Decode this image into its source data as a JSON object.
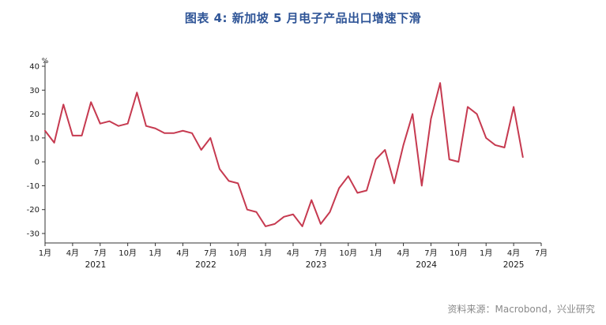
{
  "title": "图表 4: 新加坡 5 月电子产品出口增速下滑",
  "source": "资料来源：Macrobond，兴业研究",
  "colors": {
    "title_text": "#2f5597",
    "line": "#c63a50",
    "axis": "#333333",
    "tick_text": "#1a1a1a",
    "source_text": "#8a8a8a"
  },
  "chart_data": {
    "type": "line",
    "title": "图表 4: 新加坡 5 月电子产品出口增速下滑",
    "unit": "%",
    "x_start": "2021-01",
    "x_end": "2025-05",
    "x_axis_span_months": 54,
    "ylim": [
      -30,
      40
    ],
    "y_ticks": [
      40,
      30,
      20,
      10,
      0,
      -10,
      -20,
      -30
    ],
    "x_tick_labels": [
      "1月",
      "4月",
      "7月",
      "10月",
      "1月",
      "4月",
      "7月",
      "10月",
      "1月",
      "4月",
      "7月",
      "10月",
      "1月",
      "4月",
      "7月",
      "10月",
      "1月",
      "4月",
      "7月"
    ],
    "year_labels": [
      "2021",
      "2022",
      "2023",
      "2024",
      "2025"
    ],
    "grid": false,
    "legend": "none",
    "values": [
      13,
      8,
      24,
      11,
      11,
      25,
      16,
      17,
      15,
      16,
      29,
      15,
      14,
      12,
      12,
      13,
      12,
      5,
      10,
      -3,
      -8,
      -9,
      -20,
      -21,
      -27,
      -26,
      -23,
      -22,
      -27,
      -16,
      -26,
      -21,
      -11,
      -6,
      -13,
      -12,
      1,
      5,
      -9,
      7,
      20,
      -10,
      18,
      33,
      1,
      0,
      23,
      20,
      10,
      7,
      6,
      23,
      2
    ]
  }
}
